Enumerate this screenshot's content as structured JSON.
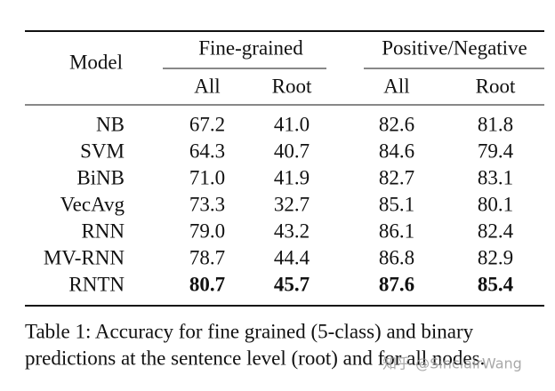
{
  "table": {
    "header": {
      "model": "Model",
      "group1": "Fine-grained",
      "group2": "Positive/Negative",
      "sub": [
        "All",
        "Root",
        "All",
        "Root"
      ]
    },
    "rows": [
      [
        "NB",
        "67.2",
        "41.0",
        "82.6",
        "81.8"
      ],
      [
        "SVM",
        "64.3",
        "40.7",
        "84.6",
        "79.4"
      ],
      [
        "BiNB",
        "71.0",
        "41.9",
        "82.7",
        "83.1"
      ],
      [
        "VecAvg",
        "73.3",
        "32.7",
        "85.1",
        "80.1"
      ],
      [
        "RNN",
        "79.0",
        "43.2",
        "86.1",
        "82.4"
      ],
      [
        "MV-RNN",
        "78.7",
        "44.4",
        "86.8",
        "82.9"
      ],
      [
        "RNTN",
        "80.7",
        "45.7",
        "87.6",
        "85.4"
      ]
    ]
  },
  "caption": {
    "lines": [
      "Table 1:  Accuracy for fine grained (5-class) and binary",
      "predictions at the sentence level (root) and for all nodes."
    ]
  },
  "watermark": "知乎 @SinclairWang"
}
